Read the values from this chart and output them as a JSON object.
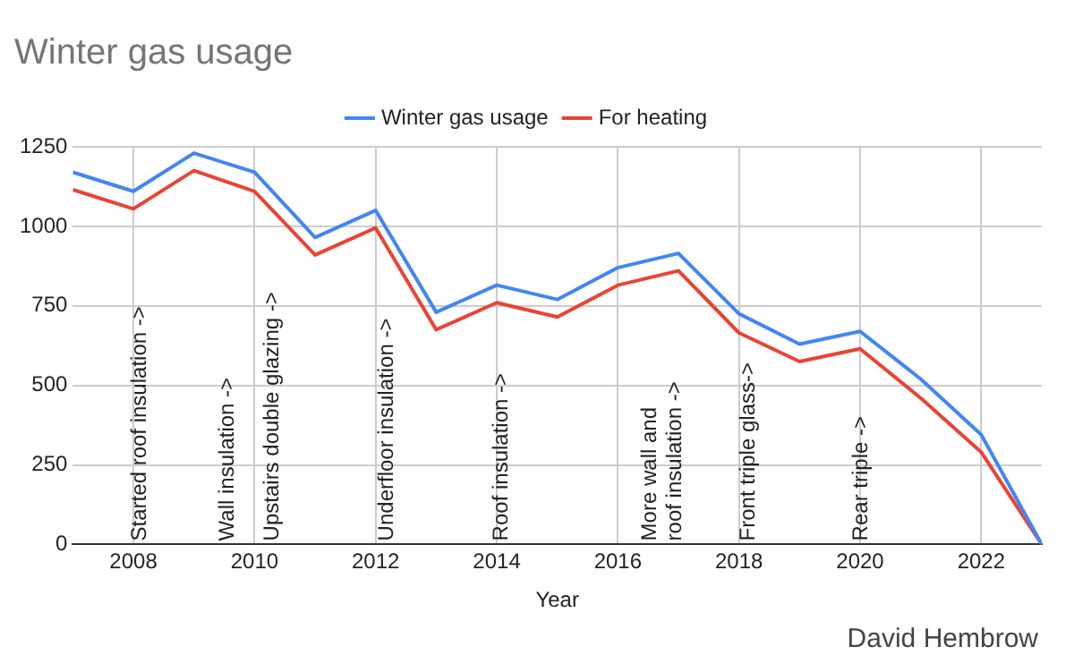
{
  "chart_data": {
    "type": "line",
    "title": "Winter gas usage",
    "xlabel": "Year",
    "x": [
      2007,
      2008,
      2009,
      2010,
      2011,
      2012,
      2013,
      2014,
      2015,
      2016,
      2017,
      2018,
      2019,
      2020,
      2021,
      2022,
      2023
    ],
    "series": [
      {
        "name": "Winter gas usage",
        "color": "#4285f4",
        "values": [
          1170,
          1110,
          1230,
          1170,
          965,
          1050,
          730,
          815,
          770,
          870,
          915,
          725,
          630,
          670,
          520,
          345,
          0
        ]
      },
      {
        "name": "For heating",
        "color": "#ea4335",
        "values": [
          1115,
          1055,
          1175,
          1110,
          910,
          995,
          675,
          760,
          715,
          815,
          860,
          665,
          575,
          615,
          460,
          290,
          0
        ]
      }
    ],
    "xlim": [
      2007,
      2023
    ],
    "xticks": [
      2008,
      2010,
      2012,
      2014,
      2016,
      2018,
      2020,
      2022
    ],
    "ylim": [
      0,
      1250
    ],
    "yticks": [
      0,
      250,
      500,
      750,
      1000,
      1250
    ],
    "grid": true,
    "legend": "top",
    "marker": "none",
    "line_style": "solid",
    "annotations": [
      "Started roof insulation ->",
      "Wall insulation ->",
      "Upstairs double glazing ->",
      "Underfloor insulation ->",
      "Roof insulation ->",
      "More wall and\nroof insulation ->",
      "Front triple glass->",
      "Rear triple ->",
      "David Hembrow"
    ]
  }
}
